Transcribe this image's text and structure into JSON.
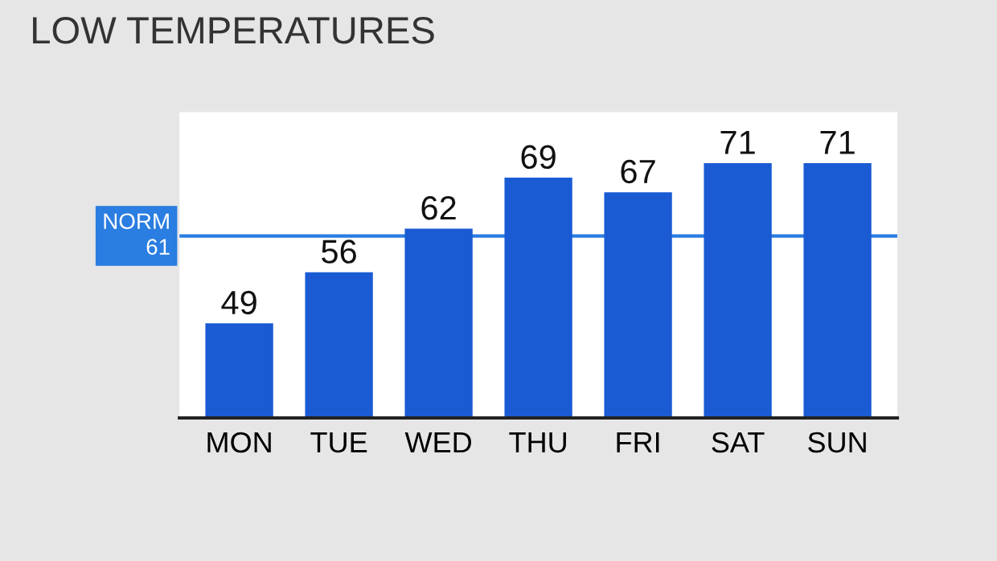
{
  "chart_data": {
    "type": "bar",
    "title": "LOW TEMPERATURES",
    "categories": [
      "MON",
      "TUE",
      "WED",
      "THU",
      "FRI",
      "SAT",
      "SUN"
    ],
    "values": [
      49,
      56,
      62,
      69,
      67,
      71,
      71
    ],
    "color": "#1a5bd4",
    "ylim": [
      36,
      78
    ],
    "data_labels": true,
    "tick_labels": "x",
    "grid": false,
    "legend": false,
    "ref_lines": [
      {
        "axis": "y",
        "value": 61,
        "label": "NORM\n61",
        "color": "#2a7de1"
      }
    ]
  }
}
